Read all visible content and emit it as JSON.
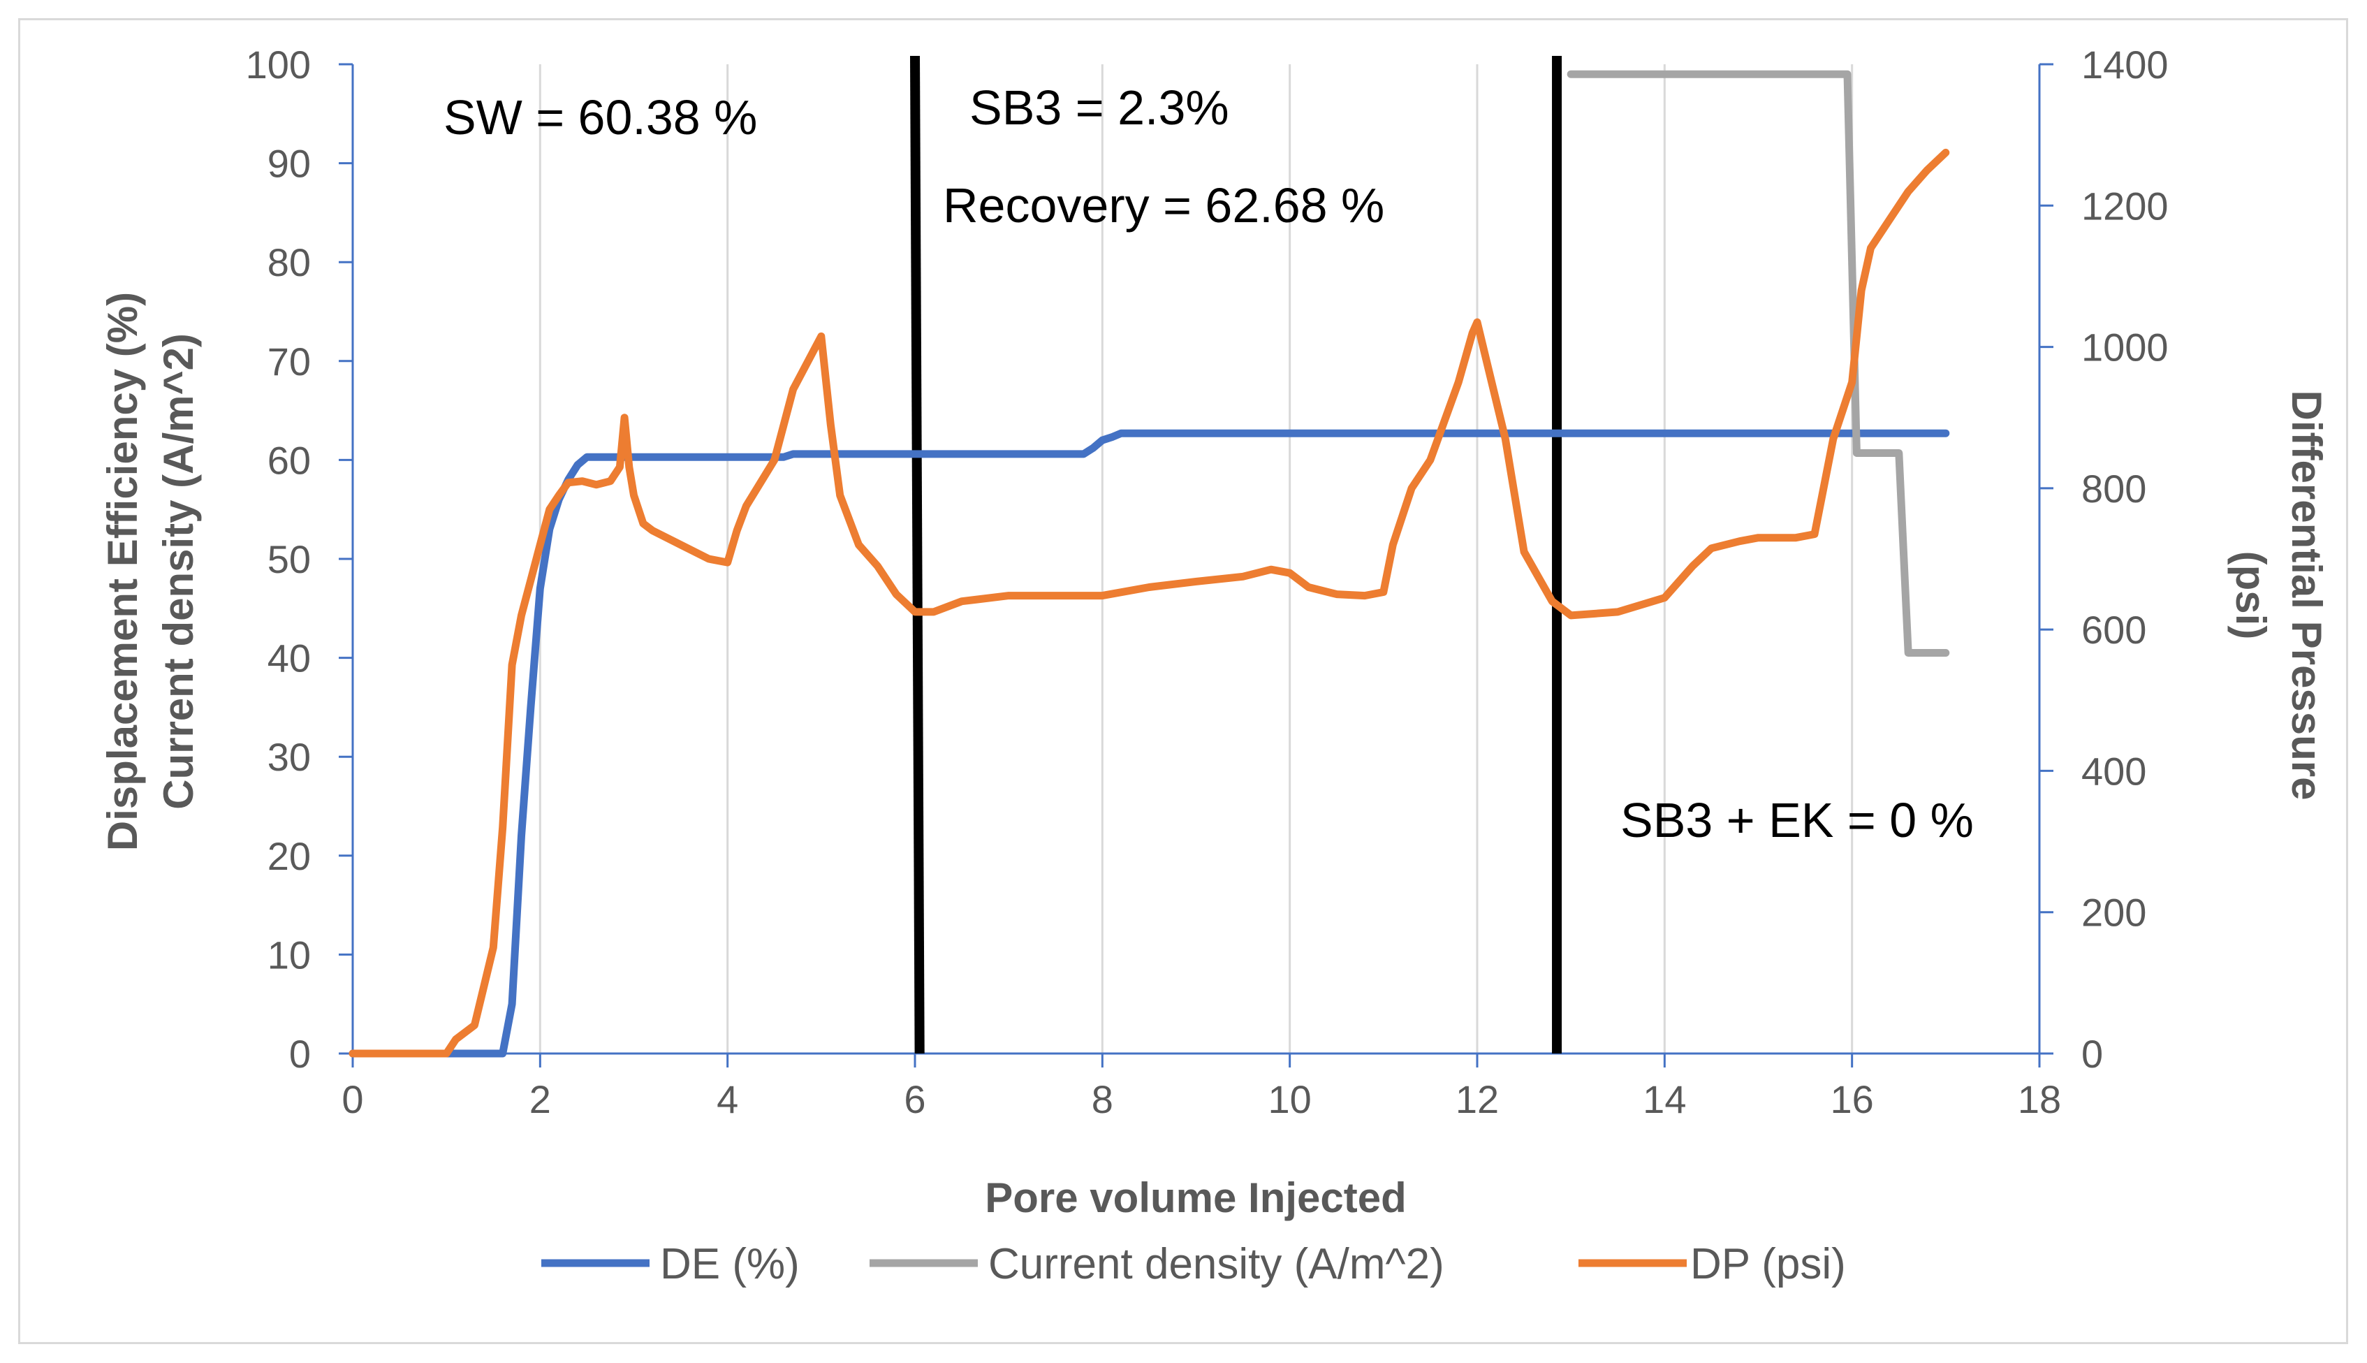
{
  "chart_data": {
    "type": "line",
    "title": "",
    "xlabel": "Pore volume Injected",
    "ylabel_left": [
      "Displacement Efficiency (%)",
      "Current density (A/m^2)"
    ],
    "ylabel_right": [
      "Differential Pressure",
      "(psi)"
    ],
    "xlim": [
      0,
      18
    ],
    "ylim_left": [
      0,
      100
    ],
    "ylim_right": [
      0,
      1400
    ],
    "x_ticks": [
      "0",
      "2",
      "4",
      "6",
      "8",
      "10",
      "12",
      "14",
      "16",
      "18"
    ],
    "y_left_ticks": [
      "0",
      "10",
      "20",
      "30",
      "40",
      "50",
      "60",
      "70",
      "80",
      "90",
      "100"
    ],
    "y_right_ticks": [
      "0",
      "200",
      "400",
      "600",
      "800",
      "1000",
      "1200",
      "1400"
    ],
    "grid": "vertical",
    "legend_position": "bottom",
    "series": [
      {
        "name": "DE (%)",
        "color": "#4472C4",
        "axis": "left",
        "x": [
          0,
          1.6,
          1.7,
          1.8,
          1.9,
          2.0,
          2.1,
          2.2,
          2.3,
          2.4,
          2.5,
          3.0,
          4.0,
          4.6,
          4.7,
          5.0,
          6.0,
          7.0,
          7.8,
          7.9,
          8.0,
          8.1,
          8.2,
          9.0,
          10.0,
          12.0,
          14.0,
          16.0,
          17.0
        ],
        "values": [
          0,
          0,
          5,
          22,
          35,
          47,
          53,
          56,
          58,
          59.5,
          60.3,
          60.3,
          60.3,
          60.3,
          60.6,
          60.6,
          60.6,
          60.6,
          60.6,
          61.2,
          62.0,
          62.3,
          62.7,
          62.7,
          62.7,
          62.7,
          62.7,
          62.7,
          62.7
        ]
      },
      {
        "name": "Current density (A/m^2)",
        "color": "#A5A5A5",
        "axis": "left",
        "x": [
          13.0,
          15.95,
          16.05,
          16.5,
          16.6,
          17.0
        ],
        "values": [
          99,
          99,
          60.7,
          60.7,
          40.5,
          40.5
        ]
      },
      {
        "name": "DP (psi)",
        "color": "#ED7D31",
        "axis": "right",
        "x": [
          0,
          1.0,
          1.1,
          1.3,
          1.5,
          1.6,
          1.7,
          1.8,
          2.0,
          2.1,
          2.2,
          2.3,
          2.45,
          2.6,
          2.75,
          2.85,
          2.9,
          2.95,
          3.0,
          3.1,
          3.2,
          3.5,
          3.8,
          4.0,
          4.1,
          4.2,
          4.5,
          4.7,
          4.9,
          5.0,
          5.1,
          5.2,
          5.4,
          5.6,
          5.8,
          6.0,
          6.2,
          6.5,
          7.0,
          7.5,
          8.0,
          8.5,
          9.0,
          9.5,
          9.8,
          10.0,
          10.2,
          10.5,
          10.8,
          11.0,
          11.1,
          11.3,
          11.5,
          11.8,
          11.95,
          12.0,
          12.1,
          12.3,
          12.5,
          12.8,
          13.0,
          13.5,
          14.0,
          14.3,
          14.5,
          14.8,
          15.0,
          15.2,
          15.4,
          15.6,
          15.8,
          16.0,
          16.1,
          16.2,
          16.4,
          16.6,
          16.8,
          17.0
        ],
        "values": [
          0,
          0,
          20,
          40,
          150,
          320,
          550,
          620,
          720,
          770,
          790,
          808,
          810,
          805,
          810,
          830,
          900,
          830,
          790,
          750,
          740,
          720,
          700,
          695,
          740,
          775,
          840,
          940,
          990,
          1015,
          890,
          790,
          720,
          690,
          650,
          625,
          625,
          640,
          648,
          648,
          648,
          660,
          668,
          675,
          685,
          680,
          660,
          650,
          648,
          653,
          720,
          800,
          840,
          950,
          1020,
          1035,
          980,
          870,
          710,
          640,
          620,
          625,
          645,
          690,
          715,
          725,
          730,
          730,
          730,
          735,
          870,
          950,
          1080,
          1140,
          1180,
          1220,
          1250,
          1275
        ]
      }
    ],
    "vertical_markers": [
      {
        "x_top": 6.0,
        "x_bottom": 6.05,
        "color": "#000000"
      },
      {
        "x_top": 12.85,
        "x_bottom": 12.85,
        "color": "#000000"
      }
    ],
    "annotations": [
      {
        "text": "SW = 60.38 %"
      },
      {
        "text": "SB3 = 2.3%"
      },
      {
        "text": "Recovery = 62.68 %"
      },
      {
        "text": "SB3 + EK = 0 %"
      }
    ]
  }
}
